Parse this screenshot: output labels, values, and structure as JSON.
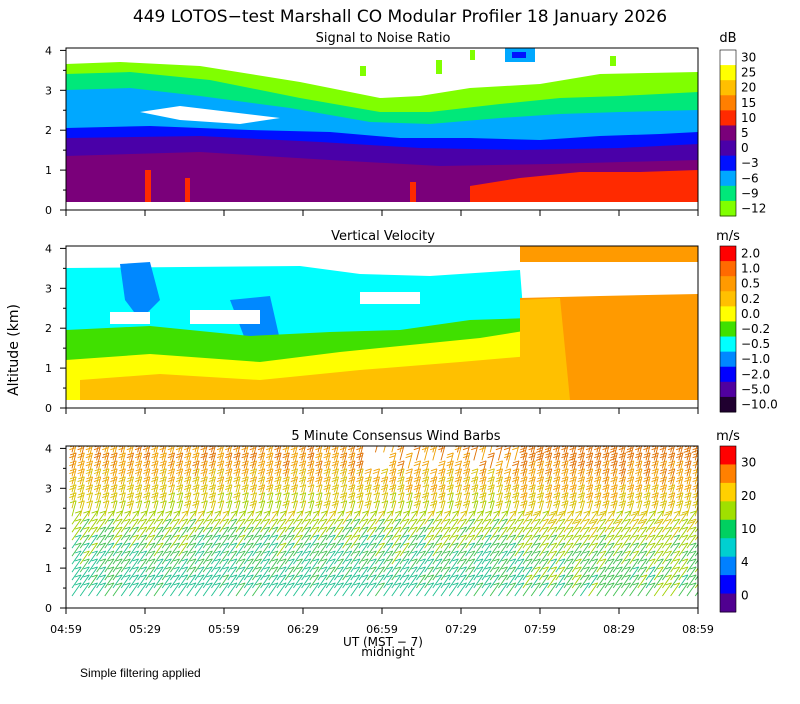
{
  "title": "449 LOTOS−test Marshall CO Modular Profiler 18 January 2026",
  "footer_note": "Simple filtering applied",
  "shared_ylabel": "Altitude (km)",
  "x_axis": {
    "label": "UT (MST − 7)",
    "marker_label": "midnight",
    "ticks": [
      "04:59",
      "05:29",
      "05:59",
      "06:29",
      "06:59",
      "07:29",
      "07:59",
      "08:29",
      "08:59"
    ]
  },
  "chart_data": [
    {
      "type": "heatmap",
      "title": "Signal to Noise Ratio",
      "ylabel": "Altitude (km)",
      "ylim": [
        0,
        4
      ],
      "yticks": [
        "0",
        "1",
        "2",
        "3",
        "4"
      ],
      "colorbar_unit": "dB",
      "colorbar_labels": [
        "30",
        "25",
        "20",
        "15",
        "10",
        "5",
        "0",
        "−3",
        "−6",
        "−9",
        "−12"
      ],
      "colorbar_colors": [
        "#ffffff",
        "#ffff00",
        "#ffbf00",
        "#ff7f00",
        "#ff2a00",
        "#7a007a",
        "#4a00a8",
        "#0010ff",
        "#00a8ff",
        "#00e87a",
        "#80ff00"
      ],
      "layers": [
        {
          "name": "lowest purple",
          "from_km": 0.3,
          "to_km": 1.2,
          "level": "5"
        },
        {
          "name": "red high SNR late",
          "from_km": 0.3,
          "to_km": 0.8,
          "level": "10",
          "start": "07:29"
        },
        {
          "name": "blue band",
          "from_km": 1.3,
          "to_km": 2.0,
          "level": "−3"
        },
        {
          "name": "cyan/green band",
          "from_km": 1.9,
          "to_km": 3.5,
          "level": "−9"
        }
      ]
    },
    {
      "type": "heatmap",
      "title": "Vertical Velocity",
      "ylabel": "Altitude (km)",
      "ylim": [
        0,
        4
      ],
      "yticks": [
        "0",
        "1",
        "2",
        "3",
        "4"
      ],
      "colorbar_unit": "m/s",
      "colorbar_labels": [
        "2.0",
        "1.0",
        "0.5",
        "0.2",
        "0.0",
        "−0.2",
        "−0.5",
        "−1.0",
        "−2.0",
        "−5.0",
        "−10.0"
      ],
      "colorbar_colors": [
        "#ff0000",
        "#ff6a00",
        "#ff9a00",
        "#ffc000",
        "#ffff00",
        "#40e000",
        "#00ffff",
        "#0088ff",
        "#0000ff",
        "#5000a0",
        "#200030"
      ],
      "regions": [
        {
          "name": "early mixed cyan/green",
          "start": "04:59",
          "end": "07:45",
          "from_km": 0.3,
          "to_km": 3.5
        },
        {
          "name": "late orange updraft",
          "start": "07:45",
          "end": "08:59",
          "from_km": 0.3,
          "to_km": 2.8
        }
      ]
    },
    {
      "type": "scatter",
      "title": "5 Minute Consensus Wind Barbs",
      "ylabel": "Altitude (km)",
      "ylim": [
        0,
        4
      ],
      "yticks": [
        "0",
        "1",
        "2",
        "3",
        "4"
      ],
      "colorbar_unit": "m/s",
      "colorbar_labels": [
        "30",
        "20",
        "10",
        "4",
        "0"
      ],
      "colorbar_colors": [
        "#ff0000",
        "#ff8000",
        "#ffd000",
        "#a0e000",
        "#00d060",
        "#00d0d0",
        "#0080ff",
        "#0000ff",
        "#500090"
      ],
      "speed_profile_ms": [
        {
          "alt_km": 0.5,
          "speed": 8
        },
        {
          "alt_km": 1.5,
          "speed": 10
        },
        {
          "alt_km": 2.5,
          "speed": 15
        },
        {
          "alt_km": 3.5,
          "speed": 22
        }
      ]
    }
  ]
}
